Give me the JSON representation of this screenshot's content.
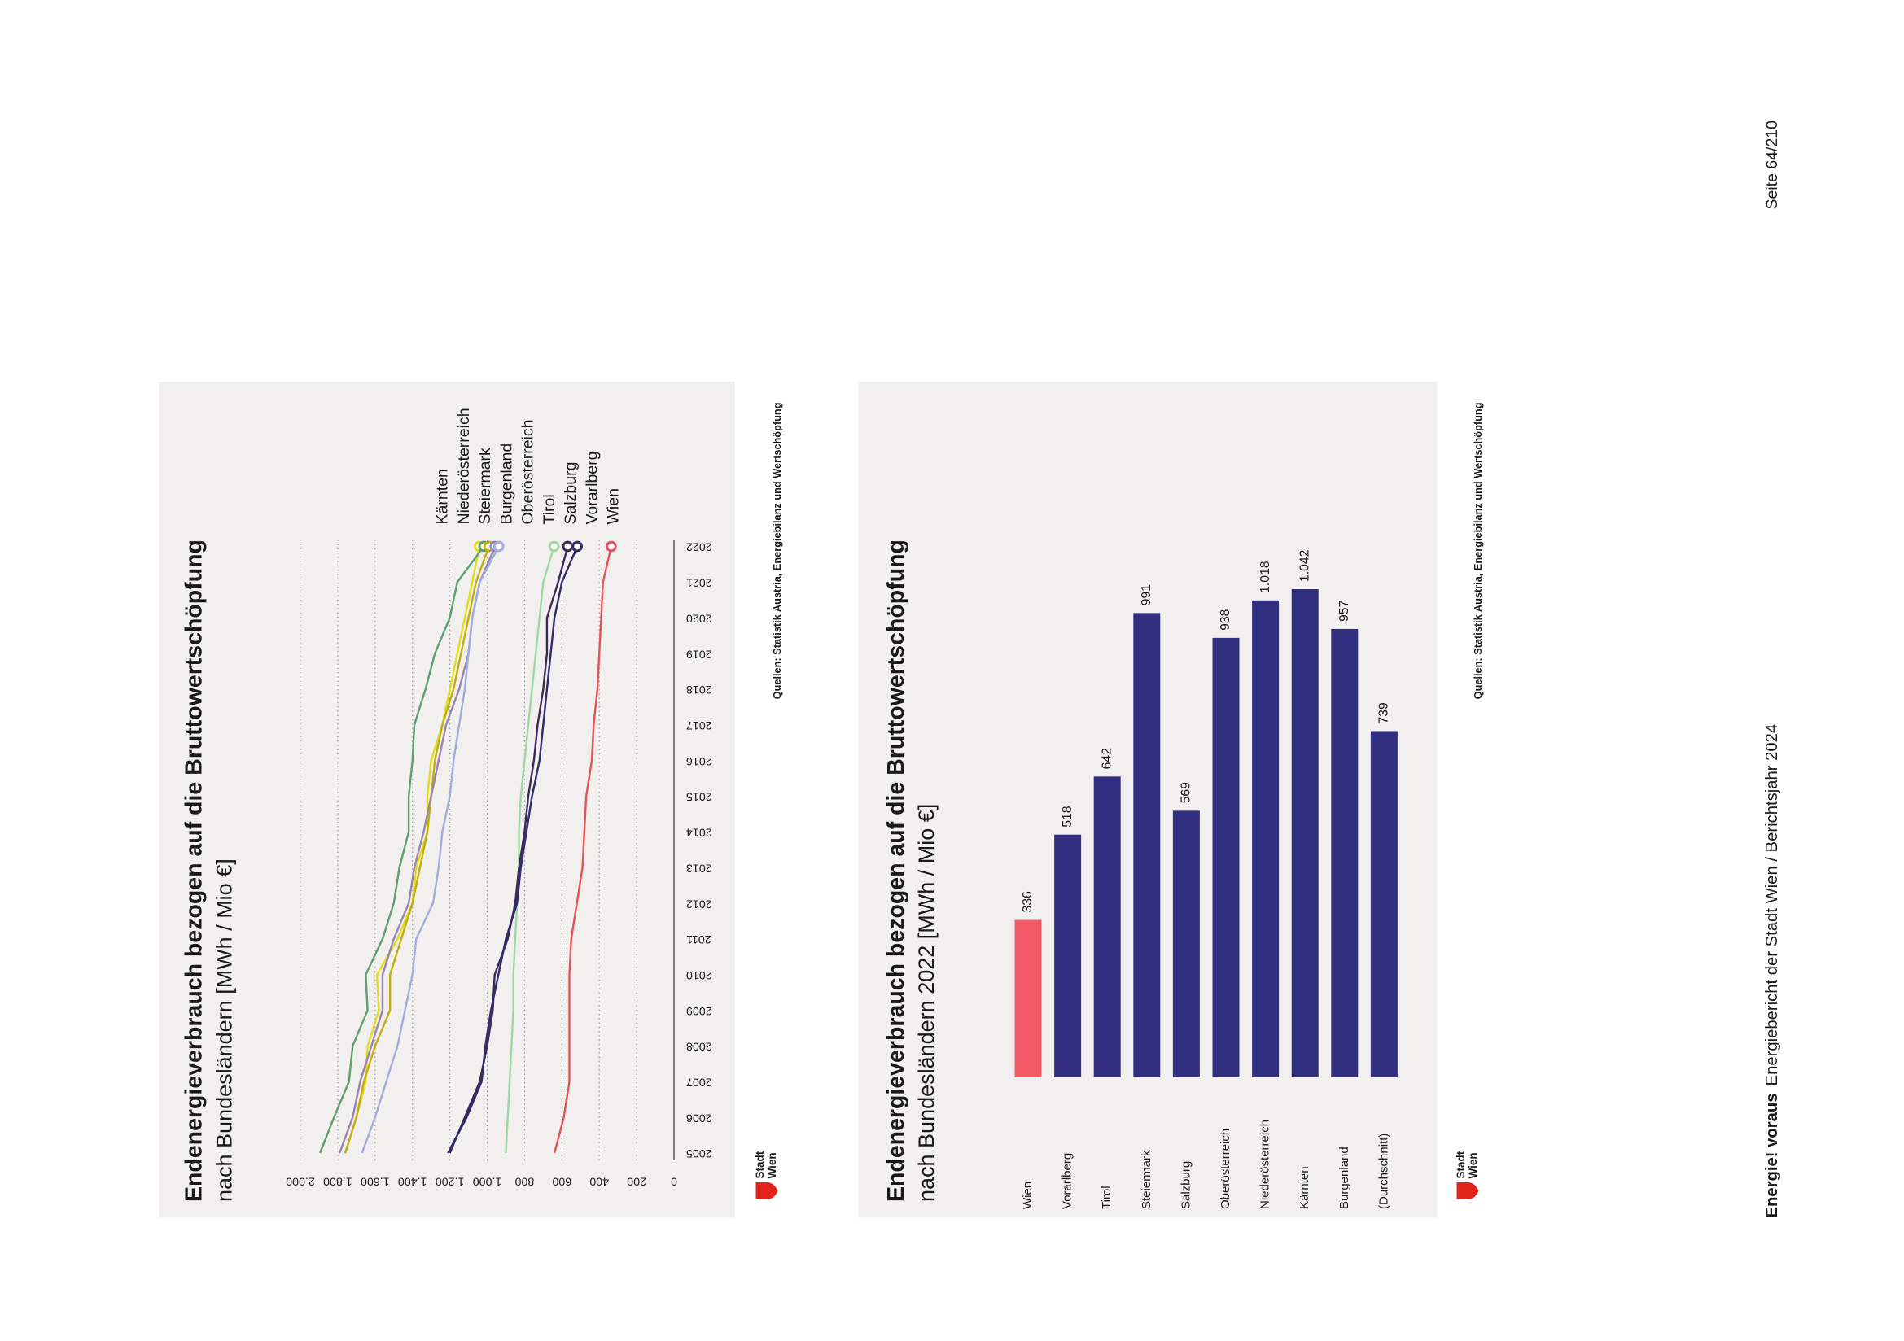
{
  "chart_data": [
    {
      "type": "line",
      "title": "Endenergieverbrauch bezogen auf die Bruttowertschöpfung",
      "subtitle": "nach Bundesländern [MWh / Mio €]",
      "source": "Quellen: Statistik Austria, Energiebilanz und Wertschöpfung",
      "x": [
        2005,
        2006,
        2007,
        2008,
        2009,
        2010,
        2011,
        2012,
        2013,
        2014,
        2015,
        2016,
        2017,
        2018,
        2019,
        2020,
        2021,
        2022
      ],
      "xlim": [
        2005,
        2022
      ],
      "xticks": [
        2005,
        2006,
        2007,
        2008,
        2009,
        2010,
        2011,
        2012,
        2013,
        2014,
        2015,
        2016,
        2017,
        2018,
        2019,
        2020,
        2021,
        2022
      ],
      "ylim": [
        0,
        2000
      ],
      "yticks": [
        0,
        200,
        400,
        600,
        800,
        {
          "value": 1000,
          "label": "1.000"
        },
        {
          "value": 1200,
          "label": "1.200"
        },
        {
          "value": 1400,
          "label": "1.400"
        },
        {
          "value": 1600,
          "label": "1.600"
        },
        {
          "value": 1800,
          "label": "1.800"
        },
        {
          "value": 2000,
          "label": "2.000"
        }
      ],
      "grid": true,
      "legend": "right",
      "series": [
        {
          "name": "Kärnten",
          "color": "#e3dc1c",
          "values": [
            1760,
            1700,
            1650,
            1640,
            1580,
            1590,
            1480,
            1400,
            1380,
            1320,
            1320,
            1300,
            1240,
            1200,
            1160,
            1120,
            1080,
            1042
          ]
        },
        {
          "name": "Niederösterreich",
          "color": "#5f9e6e",
          "values": [
            1895,
            1820,
            1740,
            1720,
            1640,
            1650,
            1560,
            1500,
            1470,
            1420,
            1420,
            1400,
            1390,
            1330,
            1280,
            1200,
            1160,
            1018
          ]
        },
        {
          "name": "Steiermark",
          "color": "#c3ad0c",
          "values": [
            1760,
            1700,
            1660,
            1600,
            1520,
            1520,
            1460,
            1400,
            1360,
            1320,
            1300,
            1280,
            1240,
            1180,
            1140,
            1100,
            1060,
            991
          ]
        },
        {
          "name": "Burgenland",
          "color": "#9884ae",
          "values": [
            1790,
            1720,
            1680,
            1620,
            1560,
            1560,
            1500,
            1420,
            1390,
            1340,
            1300,
            1260,
            1220,
            1150,
            1100,
            1080,
            1040,
            957
          ]
        },
        {
          "name": "Oberösterreich",
          "color": "#a3aade",
          "values": [
            1670,
            1600,
            1540,
            1480,
            1440,
            1400,
            1380,
            1290,
            1260,
            1240,
            1200,
            1180,
            1150,
            1120,
            1100,
            1080,
            1040,
            938
          ]
        },
        {
          "name": "Tirol",
          "color": "#9fd8a2",
          "values": [
            900,
            890,
            880,
            870,
            860,
            860,
            850,
            840,
            830,
            830,
            820,
            800,
            780,
            760,
            740,
            720,
            700,
            642
          ]
        },
        {
          "name": "Salzburg",
          "color": "#3b2a55",
          "values": [
            1200,
            1120,
            1040,
            1000,
            970,
            960,
            890,
            850,
            830,
            800,
            780,
            750,
            730,
            700,
            680,
            680,
            620,
            569
          ]
        },
        {
          "name": "Vorarlberg",
          "color": "#2f2b6e",
          "values": [
            1210,
            1110,
            1030,
            1010,
            980,
            940,
            900,
            840,
            820,
            790,
            760,
            720,
            700,
            680,
            660,
            640,
            600,
            518
          ]
        },
        {
          "name": "Wien",
          "color": "#e8505a",
          "values": [
            640,
            590,
            560,
            560,
            560,
            560,
            550,
            520,
            490,
            480,
            470,
            440,
            430,
            410,
            400,
            390,
            380,
            336
          ]
        }
      ]
    },
    {
      "type": "bar",
      "orientation": "horizontal",
      "title": "Endenergieverbrauch bezogen auf die Bruttowertschöpfung",
      "subtitle": "nach Bundesländern 2022 [MWh / Mio €]",
      "source": "Quellen: Statistik Austria, Energiebilanz und Wertschöpfung",
      "categories": [
        "Wien",
        "Vorarlberg",
        "Tirol",
        "Steiermark",
        "Salzburg",
        "Oberösterreich",
        "Niederösterreich",
        "Kärnten",
        "Burgenland",
        "(Durchschnitt)"
      ],
      "values": [
        336,
        518,
        642,
        991,
        569,
        938,
        1018,
        1042,
        957,
        739
      ],
      "value_labels": [
        "336",
        "518",
        "642",
        "991",
        "569",
        "938",
        "1.018",
        "1.042",
        "957",
        "739"
      ],
      "colors": [
        "#f25b66",
        "#332f80",
        "#332f80",
        "#332f80",
        "#332f80",
        "#332f80",
        "#332f80",
        "#332f80",
        "#332f80",
        "#332f80"
      ]
    }
  ],
  "logo": [
    "Stadt",
    "Wien"
  ],
  "footer": {
    "brand": "Energie! voraus",
    "text": "Energiebericht der Stadt Wien / Berichtsjahr 2024",
    "page": "Seite 64/210"
  }
}
